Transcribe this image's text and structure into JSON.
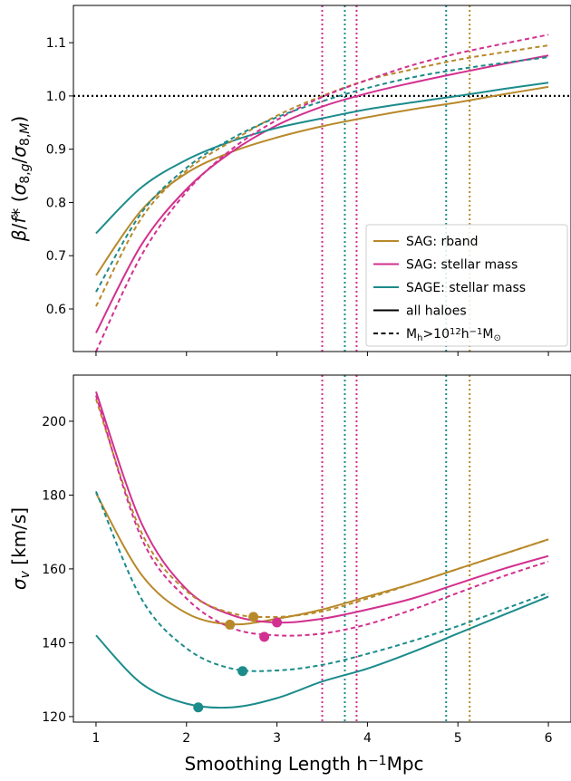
{
  "chart_data": [
    {
      "type": "line",
      "panel": "top",
      "title": "",
      "xlabel": "",
      "ylabel": "β/f*(σ8,g/σ8,M)",
      "xlim": [
        0.75,
        6.25
      ],
      "ylim": [
        0.52,
        1.17
      ],
      "xticks": [
        1,
        2,
        3,
        4,
        5,
        6
      ],
      "yticks": [
        0.6,
        0.7,
        0.8,
        0.9,
        1.0,
        1.1
      ],
      "ytick_labels": [
        "0.6",
        "0.7",
        "0.8",
        "0.9",
        "1.0",
        "1.1"
      ],
      "grid": false,
      "reference_line": {
        "y": 1.0,
        "style": "dotted",
        "color": "#000000"
      },
      "x": [
        1.0,
        1.5,
        2.0,
        2.5,
        3.0,
        3.5,
        4.0,
        4.5,
        5.0,
        5.5,
        6.0
      ],
      "series": [
        {
          "name": "SAG: rband",
          "color": "#b8892a",
          "style": "solid",
          "values": [
            0.663,
            0.785,
            0.855,
            0.895,
            0.922,
            0.943,
            0.96,
            0.975,
            0.988,
            1.003,
            1.017
          ]
        },
        {
          "name": "SAG: stellar mass",
          "color": "#d2308f",
          "style": "solid",
          "values": [
            0.555,
            0.72,
            0.825,
            0.895,
            0.945,
            0.98,
            1.005,
            1.025,
            1.043,
            1.06,
            1.076
          ]
        },
        {
          "name": "SAGE: stellar mass",
          "color": "#1c8b8b",
          "style": "solid",
          "values": [
            0.742,
            0.828,
            0.88,
            0.915,
            0.94,
            0.958,
            0.975,
            0.988,
            1.0,
            1.013,
            1.025
          ]
        },
        {
          "name": "SAG: rband (Mh>10^12)",
          "color": "#b8892a",
          "style": "dashed",
          "values": [
            0.605,
            0.77,
            0.86,
            0.915,
            0.963,
            1.0,
            1.03,
            1.05,
            1.068,
            1.082,
            1.095
          ]
        },
        {
          "name": "SAG: stellar mass (Mh>10^12)",
          "color": "#d2308f",
          "style": "dashed",
          "values": [
            0.52,
            0.7,
            0.82,
            0.9,
            0.955,
            0.998,
            1.03,
            1.058,
            1.08,
            1.098,
            1.115
          ]
        },
        {
          "name": "SAGE: stellar mass (Mh>10^12)",
          "color": "#1c8b8b",
          "style": "dashed",
          "values": [
            0.632,
            0.78,
            0.865,
            0.92,
            0.96,
            0.99,
            1.015,
            1.035,
            1.05,
            1.062,
            1.073
          ]
        }
      ],
      "crossing_markers": [
        {
          "x": 3.5,
          "color": "#d2308f"
        },
        {
          "x": 3.75,
          "color": "#1c8b8b"
        },
        {
          "x": 3.88,
          "color": "#d2308f"
        },
        {
          "x": 4.87,
          "color": "#1c8b8b"
        },
        {
          "x": 5.13,
          "color": "#b8892a"
        }
      ],
      "legend": {
        "placement": "lower-right",
        "entries": [
          {
            "label": "SAG: rband",
            "color": "#b8892a",
            "style": "solid"
          },
          {
            "label": "SAG: stellar mass",
            "color": "#d2308f",
            "style": "solid"
          },
          {
            "label": "SAGE: stellar mass",
            "color": "#1c8b8b",
            "style": "solid"
          },
          {
            "label": "all haloes",
            "color": "#000000",
            "style": "solid"
          },
          {
            "label": "Mh>10^12h^-1M⊙",
            "color": "#000000",
            "style": "dashed"
          }
        ]
      }
    },
    {
      "type": "line",
      "panel": "bottom",
      "title": "",
      "xlabel": "Smoothing Length h⁻¹Mpc",
      "ylabel": "σv [km/s]",
      "xlim": [
        0.75,
        6.25
      ],
      "ylim": [
        118.5,
        212.5
      ],
      "xticks": [
        1,
        2,
        3,
        4,
        5,
        6
      ],
      "yticks": [
        120,
        140,
        160,
        180,
        200
      ],
      "grid": false,
      "x": [
        1.0,
        1.5,
        2.0,
        2.5,
        3.0,
        3.5,
        4.0,
        4.5,
        5.0,
        5.5,
        6.0
      ],
      "series": [
        {
          "name": "SAG: rband",
          "color": "#b8892a",
          "style": "solid",
          "values": [
            180.5,
            158.5,
            148.0,
            145.0,
            146.5,
            149.0,
            152.5,
            156.0,
            160.0,
            164.0,
            168.0
          ]
        },
        {
          "name": "SAG: stellar mass",
          "color": "#d2308f",
          "style": "solid",
          "values": [
            208.0,
            172.5,
            154.5,
            147.5,
            145.5,
            146.5,
            149.0,
            152.0,
            156.0,
            160.0,
            163.5
          ]
        },
        {
          "name": "SAGE: stellar mass",
          "color": "#1c8b8b",
          "style": "solid",
          "values": [
            142.0,
            129.0,
            123.5,
            122.5,
            125.0,
            129.5,
            133.0,
            137.5,
            142.5,
            147.5,
            152.5
          ]
        },
        {
          "name": "SAG: rband (Mh>10^12)",
          "color": "#b8892a",
          "style": "dashed",
          "values": [
            206.0,
            170.0,
            154.0,
            148.0,
            147.0,
            148.5,
            152.0,
            156.0,
            160.0,
            164.0,
            168.0
          ]
        },
        {
          "name": "SAG: stellar mass (Mh>10^12)",
          "color": "#d2308f",
          "style": "dashed",
          "values": [
            207.0,
            168.5,
            152.0,
            144.0,
            142.0,
            142.5,
            145.0,
            149.0,
            153.5,
            158.0,
            162.0
          ]
        },
        {
          "name": "SAGE: stellar mass (Mh>10^12)",
          "color": "#1c8b8b",
          "style": "dashed",
          "values": [
            181.0,
            152.0,
            138.5,
            133.0,
            132.5,
            134.0,
            137.0,
            140.5,
            144.5,
            149.0,
            153.5
          ]
        }
      ],
      "minima": [
        {
          "x": 2.48,
          "y": 144.9,
          "color": "#b8892a"
        },
        {
          "x": 2.74,
          "y": 147.0,
          "color": "#b8892a"
        },
        {
          "x": 3.0,
          "y": 145.5,
          "color": "#d2308f"
        },
        {
          "x": 2.86,
          "y": 141.6,
          "color": "#d2308f"
        },
        {
          "x": 2.13,
          "y": 122.5,
          "color": "#1c8b8b"
        },
        {
          "x": 2.62,
          "y": 132.3,
          "color": "#1c8b8b"
        }
      ],
      "crossing_markers": [
        {
          "x": 3.5,
          "color": "#d2308f"
        },
        {
          "x": 3.75,
          "color": "#1c8b8b"
        },
        {
          "x": 3.88,
          "color": "#d2308f"
        },
        {
          "x": 4.87,
          "color": "#1c8b8b"
        },
        {
          "x": 5.13,
          "color": "#b8892a"
        }
      ]
    }
  ]
}
